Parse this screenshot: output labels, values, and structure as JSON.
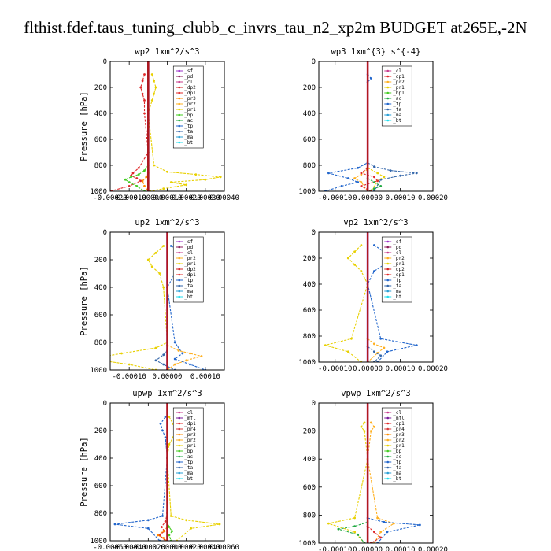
{
  "title": "flthist.fdef.taus_tuning_clubb_c_invrs_tau_n2_xp2m  BUDGET at265E,-2N",
  "colors": {
    "_sf": "#9b30c8",
    "_pd": "#8b1a5a",
    "_cl": "#c83c8c",
    "_dp2": "#d42020",
    "_dp1": "#e02828",
    "_mfl": "#7a1a9a",
    "_pr4": "#d83a3a",
    "_pr3": "#ff8c00",
    "_pr2": "#ffb020",
    "_pr1": "#e8d000",
    "_bp": "#44cc22",
    "_bp1": "#44cc22",
    "_ac": "#22aa44",
    "_tp": "#2266cc",
    "_ta": "#3366aa",
    "_ma": "#2a9fd6",
    "_bt": "#22ddee"
  },
  "chart_data": [
    {
      "type": "line",
      "title": "wp2  1xm^2/s^3",
      "ylabel": "Pressure [hPa]",
      "xlim": [
        -0.0002,
        0.0004
      ],
      "ylim": [
        1000,
        0
      ],
      "xticks": [
        "-0.00020",
        "-0.00010",
        "0.00000",
        "0.00010",
        "0.00020",
        "0.00030",
        "0.00040"
      ],
      "yticks": [
        "0",
        "200",
        "400",
        "600",
        "800",
        "1000"
      ],
      "legend": [
        "_sf",
        "_pd",
        "_cl",
        "_dp2",
        "_dp1",
        "_pr3",
        "_pr2",
        "_pr1",
        "_bp",
        "_ac",
        "_tp",
        "_ta",
        "_ma",
        "_bt"
      ],
      "series": [
        {
          "name": "_dp1",
          "x": [
            -2e-05,
            -3e-05,
            -4e-05,
            -3e-05,
            -2e-05,
            -2e-05,
            0,
            -5e-05,
            -8e-05,
            -9e-05,
            -6e-05,
            -4e-05,
            -0.0001,
            -0.0002
          ],
          "y": [
            100,
            150,
            200,
            250,
            300,
            400,
            700,
            820,
            860,
            880,
            900,
            920,
            960,
            1000
          ]
        },
        {
          "name": "_pr1",
          "x": [
            2e-05,
            3e-05,
            4e-05,
            3e-05,
            2e-05,
            0,
            3e-05,
            0.0001,
            0.00025,
            0.00038,
            0.0003,
            0.00012,
            0.0002,
            8e-05,
            1e-05
          ],
          "y": [
            100,
            150,
            200,
            250,
            300,
            400,
            800,
            850,
            870,
            890,
            910,
            930,
            950,
            980,
            1000
          ]
        },
        {
          "name": "_bp",
          "x": [
            0,
            -2e-05,
            -5e-05,
            -9e-05,
            -0.00012,
            -0.0001,
            -6e-05,
            -2e-05
          ],
          "y": [
            800,
            840,
            870,
            890,
            910,
            930,
            960,
            1000
          ]
        },
        {
          "name": "_pr3",
          "x": [
            0,
            -1e-05,
            -3e-05,
            -2e-05,
            0
          ],
          "y": [
            860,
            890,
            920,
            960,
            1000
          ]
        },
        {
          "name": "_sf",
          "x": [
            0,
            0
          ],
          "y": [
            0,
            1000
          ]
        },
        {
          "name": "_pd",
          "x": [
            0.0,
            0.0
          ],
          "y": [
            0,
            1000
          ]
        }
      ]
    },
    {
      "type": "line",
      "title": "wp3  1xm^{3} s^{-4}",
      "ylabel": "",
      "xlim": [
        -0.00015,
        0.0002
      ],
      "ylim": [
        1000,
        0
      ],
      "xticks": [
        "-0.00010",
        "0.00000",
        "0.00010",
        "0.00020"
      ],
      "yticks": [
        "0",
        "200",
        "400",
        "600",
        "800",
        "1000"
      ],
      "legend": [
        "_cl",
        "_dp1",
        "_pr2",
        "_pr1",
        "_bp1",
        "_ac",
        "_tp",
        "_ta",
        "_ma",
        "_bt"
      ],
      "series": [
        {
          "name": "_tp",
          "x": [
            0,
            1e-05,
            0.0,
            0,
            -3e-05,
            -0.00012,
            -6e-05,
            -3e-05,
            -8e-05,
            -0.00013
          ],
          "y": [
            100,
            130,
            160,
            780,
            820,
            860,
            900,
            930,
            960,
            1000
          ]
        },
        {
          "name": "_ta",
          "x": [
            0,
            2e-05,
            7e-05,
            0.00015,
            0.0001,
            4e-05,
            2e-05
          ],
          "y": [
            780,
            810,
            840,
            860,
            880,
            910,
            1000
          ]
        },
        {
          "name": "_pr1",
          "x": [
            0,
            3e-05,
            5e-05,
            3e-05,
            1e-05
          ],
          "y": [
            820,
            860,
            890,
            920,
            1000
          ]
        },
        {
          "name": "_pr2",
          "x": [
            0,
            -2e-05,
            -4e-05,
            -2e-05,
            0
          ],
          "y": [
            830,
            870,
            900,
            930,
            1000
          ]
        },
        {
          "name": "_dp1",
          "x": [
            0,
            -2e-05,
            2e-05,
            3e-05,
            -2e-05,
            1e-05
          ],
          "y": [
            820,
            860,
            890,
            920,
            960,
            1000
          ]
        },
        {
          "name": "_ac",
          "x": [
            0,
            2e-05,
            4e-05,
            2e-05,
            0
          ],
          "y": [
            900,
            930,
            960,
            980,
            1000
          ]
        },
        {
          "name": "_cl",
          "x": [
            0,
            0
          ],
          "y": [
            0,
            1000
          ]
        }
      ]
    },
    {
      "type": "line",
      "title": "up2  1xm^2/s^3",
      "ylabel": "Pressure [hPa]",
      "xlim": [
        -0.00015,
        0.00015
      ],
      "ylim": [
        1000,
        0
      ],
      "xticks": [
        "-0.00010",
        "0.00000",
        "0.00010"
      ],
      "yticks": [
        "0",
        "200",
        "400",
        "600",
        "800",
        "1000"
      ],
      "legend": [
        "_sf",
        "_pd",
        "_cl",
        "_pr2",
        "_pr1",
        "_dp2",
        "_dp1",
        "_tp",
        "_ta",
        "_ma",
        "_bt"
      ],
      "series": [
        {
          "name": "_pr1",
          "x": [
            -1e-05,
            -3e-05,
            -5e-05,
            -4e-05,
            -2e-05,
            -1e-05,
            0,
            -3e-05,
            -0.00012,
            -0.0002,
            -0.0001,
            -3e-05
          ],
          "y": [
            100,
            150,
            200,
            250,
            300,
            400,
            800,
            840,
            880,
            920,
            960,
            1000
          ]
        },
        {
          "name": "_tp",
          "x": [
            1e-05,
            4e-05,
            6e-05,
            4e-05,
            2e-05,
            0,
            2e-05,
            4e-05,
            2e-05,
            6e-05,
            0.0001
          ],
          "y": [
            100,
            150,
            200,
            250,
            300,
            400,
            800,
            880,
            920,
            960,
            1000
          ]
        },
        {
          "name": "_pr2",
          "x": [
            0,
            3e-05,
            6e-05,
            9e-05,
            5e-05,
            2e-05,
            0
          ],
          "y": [
            820,
            860,
            880,
            900,
            930,
            960,
            1000
          ]
        },
        {
          "name": "_ta",
          "x": [
            0,
            -1e-05,
            -3e-05,
            -1e-05,
            2e-05
          ],
          "y": [
            860,
            890,
            930,
            960,
            1000
          ]
        },
        {
          "name": "_sf",
          "x": [
            0,
            0
          ],
          "y": [
            0,
            1000
          ]
        }
      ]
    },
    {
      "type": "line",
      "title": "vp2  1xm^2/s^3",
      "ylabel": "",
      "xlim": [
        -0.00015,
        0.0002
      ],
      "ylim": [
        1000,
        0
      ],
      "xticks": [
        "-0.00010",
        "0.00000",
        "0.00010",
        "0.00020"
      ],
      "yticks": [
        "0",
        "200",
        "400",
        "600",
        "800",
        "1000"
      ],
      "legend": [
        "_sf",
        "_pd",
        "_cl",
        "_pr2",
        "_pr1",
        "_dp2",
        "_dp1",
        "_tp",
        "_ta",
        "_ma",
        "_bt"
      ],
      "series": [
        {
          "name": "_pr1",
          "x": [
            -2e-05,
            -4e-05,
            -6e-05,
            -4e-05,
            -2e-05,
            0,
            -5e-05,
            -0.00013,
            -6e-05,
            -2e-05
          ],
          "y": [
            100,
            150,
            200,
            250,
            300,
            400,
            820,
            870,
            920,
            1000
          ]
        },
        {
          "name": "_tp",
          "x": [
            2e-05,
            5e-05,
            7e-05,
            5e-05,
            2e-05,
            0,
            4e-05,
            0.00015,
            6e-05,
            3e-05
          ],
          "y": [
            100,
            150,
            200,
            250,
            300,
            400,
            820,
            870,
            920,
            1000
          ]
        },
        {
          "name": "_pr2",
          "x": [
            0,
            2e-05,
            5e-05,
            3e-05,
            0
          ],
          "y": [
            820,
            860,
            890,
            930,
            1000
          ]
        },
        {
          "name": "_ta",
          "x": [
            0,
            2e-05,
            4e-05,
            2e-05
          ],
          "y": [
            880,
            920,
            950,
            1000
          ]
        },
        {
          "name": "_sf",
          "x": [
            0,
            0
          ],
          "y": [
            0,
            1000
          ]
        }
      ]
    },
    {
      "type": "line",
      "title": "upwp  1xm^2/s^3",
      "ylabel": "Pressure [hPa]",
      "xlim": [
        -0.0006,
        0.0006
      ],
      "ylim": [
        1000,
        0
      ],
      "xticks": [
        "-0.00060",
        "-0.00040",
        "-0.00020",
        "0.00000",
        "0.00020",
        "0.00040",
        "0.00060"
      ],
      "yticks": [
        "0",
        "200",
        "400",
        "600",
        "800",
        "1000"
      ],
      "legend": [
        "_cl",
        "_mfl",
        "_dp1",
        "_pr4",
        "_pr3",
        "_pr2",
        "_pr1",
        "_bp",
        "_ac",
        "_tp",
        "_ta",
        "_ma",
        "_bt"
      ],
      "series": [
        {
          "name": "_pr1",
          "x": [
            2e-05,
            6e-05,
            9e-05,
            6e-05,
            2e-05,
            0,
            4e-05,
            0.0002,
            0.00055,
            0.00025,
            0.0001
          ],
          "y": [
            100,
            150,
            200,
            250,
            300,
            400,
            820,
            850,
            880,
            910,
            1000
          ]
        },
        {
          "name": "_tp",
          "x": [
            -2e-05,
            -7e-05,
            -5e-05,
            -2e-05,
            0,
            -5e-05,
            -0.0002,
            -0.00055,
            -0.0002,
            -8e-05
          ],
          "y": [
            100,
            150,
            200,
            250,
            400,
            820,
            850,
            880,
            910,
            1000
          ]
        },
        {
          "name": "_dp1",
          "x": [
            0,
            -2e-05,
            -6e-05,
            -3e-05,
            -8e-05,
            -2e-05
          ],
          "y": [
            800,
            860,
            900,
            930,
            960,
            1000
          ]
        },
        {
          "name": "_bp",
          "x": [
            0,
            2e-05,
            5e-05,
            2e-05,
            4e-05
          ],
          "y": [
            860,
            900,
            930,
            960,
            1000
          ]
        },
        {
          "name": "_pr3",
          "x": [
            0,
            -4e-05,
            -0.0001,
            -4e-05,
            -1e-05
          ],
          "y": [
            900,
            930,
            960,
            980,
            1000
          ]
        },
        {
          "name": "_cl",
          "x": [
            0,
            0
          ],
          "y": [
            0,
            1000
          ]
        }
      ]
    },
    {
      "type": "line",
      "title": "vpwp  1xm^2/s^3",
      "ylabel": "",
      "xlim": [
        -0.00015,
        0.0002
      ],
      "ylim": [
        1000,
        0
      ],
      "xticks": [
        "-0.00010",
        "0.00000",
        "0.00010",
        "0.00020"
      ],
      "yticks": [
        "0",
        "200",
        "400",
        "600",
        "800",
        "1000"
      ],
      "legend": [
        "_cl",
        "_mfl",
        "_dp1",
        "_pr4",
        "_pr3",
        "_pr2",
        "_pr1",
        "_bp",
        "_ac",
        "_tp",
        "_ta",
        "_ma",
        "_bt"
      ],
      "series": [
        {
          "name": "_pr2",
          "x": [
            1e-05,
            2e-05,
            1e-05,
            0,
            3e-05,
            8e-05,
            4e-05,
            2e-05
          ],
          "y": [
            140,
            170,
            200,
            400,
            820,
            860,
            920,
            1000
          ]
        },
        {
          "name": "_pr1",
          "x": [
            -1e-05,
            -2e-05,
            -1e-05,
            0,
            -4e-05,
            -0.00012,
            -4e-05,
            -1e-05
          ],
          "y": [
            140,
            170,
            200,
            400,
            820,
            860,
            920,
            1000
          ]
        },
        {
          "name": "_tp",
          "x": [
            0,
            5e-05,
            0.00016,
            6e-05,
            3e-05
          ],
          "y": [
            820,
            850,
            870,
            920,
            1000
          ]
        },
        {
          "name": "_ac",
          "x": [
            0,
            -4e-05,
            -9e-05,
            -3e-05,
            -1e-05
          ],
          "y": [
            850,
            880,
            900,
            940,
            1000
          ]
        },
        {
          "name": "_dp1",
          "x": [
            0,
            2e-05,
            4e-05,
            1e-05
          ],
          "y": [
            880,
            920,
            960,
            1000
          ]
        },
        {
          "name": "_cl",
          "x": [
            0,
            0
          ],
          "y": [
            0,
            1000
          ]
        }
      ]
    }
  ]
}
